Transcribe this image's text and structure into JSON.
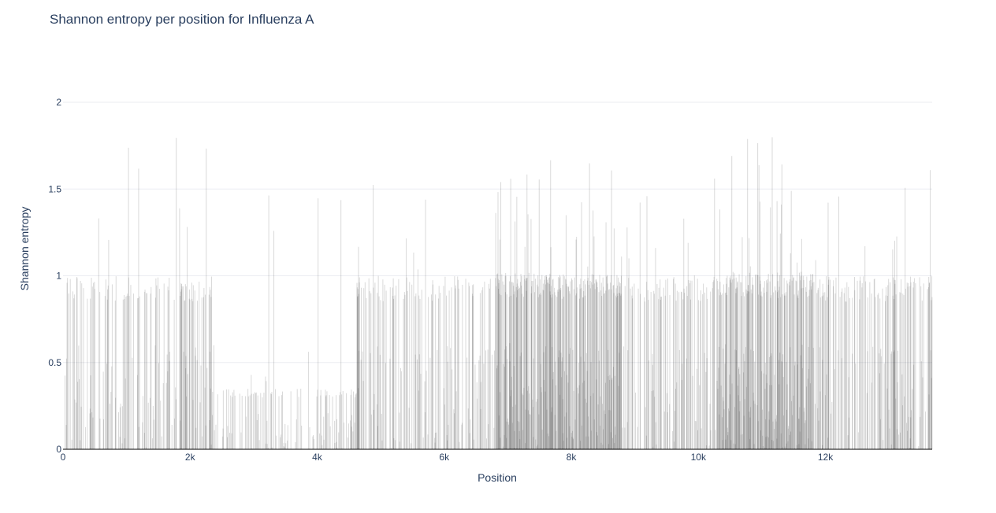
{
  "chart_data": {
    "type": "bar",
    "title": "Shannon entropy per position for Influenza A",
    "xlabel": "Position",
    "ylabel": "Shannon entropy",
    "xlim": [
      0,
      13680
    ],
    "ylim": [
      0,
      2.0
    ],
    "x_ticks": [
      {
        "value": 0,
        "label": "0"
      },
      {
        "value": 2000,
        "label": "2k"
      },
      {
        "value": 4000,
        "label": "4k"
      },
      {
        "value": 6000,
        "label": "6k"
      },
      {
        "value": 8000,
        "label": "8k"
      },
      {
        "value": 10000,
        "label": "10k"
      },
      {
        "value": 12000,
        "label": "12k"
      }
    ],
    "y_ticks": [
      {
        "value": 0,
        "label": "0"
      },
      {
        "value": 0.5,
        "label": "0.5"
      },
      {
        "value": 1,
        "label": "1"
      },
      {
        "value": 1.5,
        "label": "1.5"
      },
      {
        "value": 2,
        "label": "2"
      }
    ],
    "grid": true,
    "bar_color": "#000000",
    "bar_opacity": 0.15,
    "note_on_values": "Per-position entropy values estimated from the figure as segments (dense bars, one per nucleotide position). Each segment lists start/end position, typical max entropy, peak entropy and density of high-entropy positions.",
    "segments": [
      {
        "start": 0,
        "end": 2300,
        "typical": 1.0,
        "peak": 1.82,
        "density": 0.3
      },
      {
        "start": 2300,
        "end": 2340,
        "typical": 1.0,
        "peak": 1.73,
        "density": 0.95
      },
      {
        "start": 2340,
        "end": 4620,
        "typical": 0.35,
        "peak": 1.54,
        "density": 0.22
      },
      {
        "start": 4620,
        "end": 4660,
        "typical": 1.0,
        "peak": 1.57,
        "density": 0.9
      },
      {
        "start": 4660,
        "end": 6800,
        "typical": 1.0,
        "peak": 1.6,
        "density": 0.32
      },
      {
        "start": 6800,
        "end": 8760,
        "typical": 1.02,
        "peak": 1.71,
        "density": 0.75
      },
      {
        "start": 8760,
        "end": 10280,
        "typical": 1.0,
        "peak": 1.65,
        "density": 0.3
      },
      {
        "start": 10280,
        "end": 11800,
        "typical": 1.02,
        "peak": 1.81,
        "density": 0.75
      },
      {
        "start": 11800,
        "end": 13680,
        "typical": 1.0,
        "peak": 1.67,
        "density": 0.33
      }
    ]
  }
}
